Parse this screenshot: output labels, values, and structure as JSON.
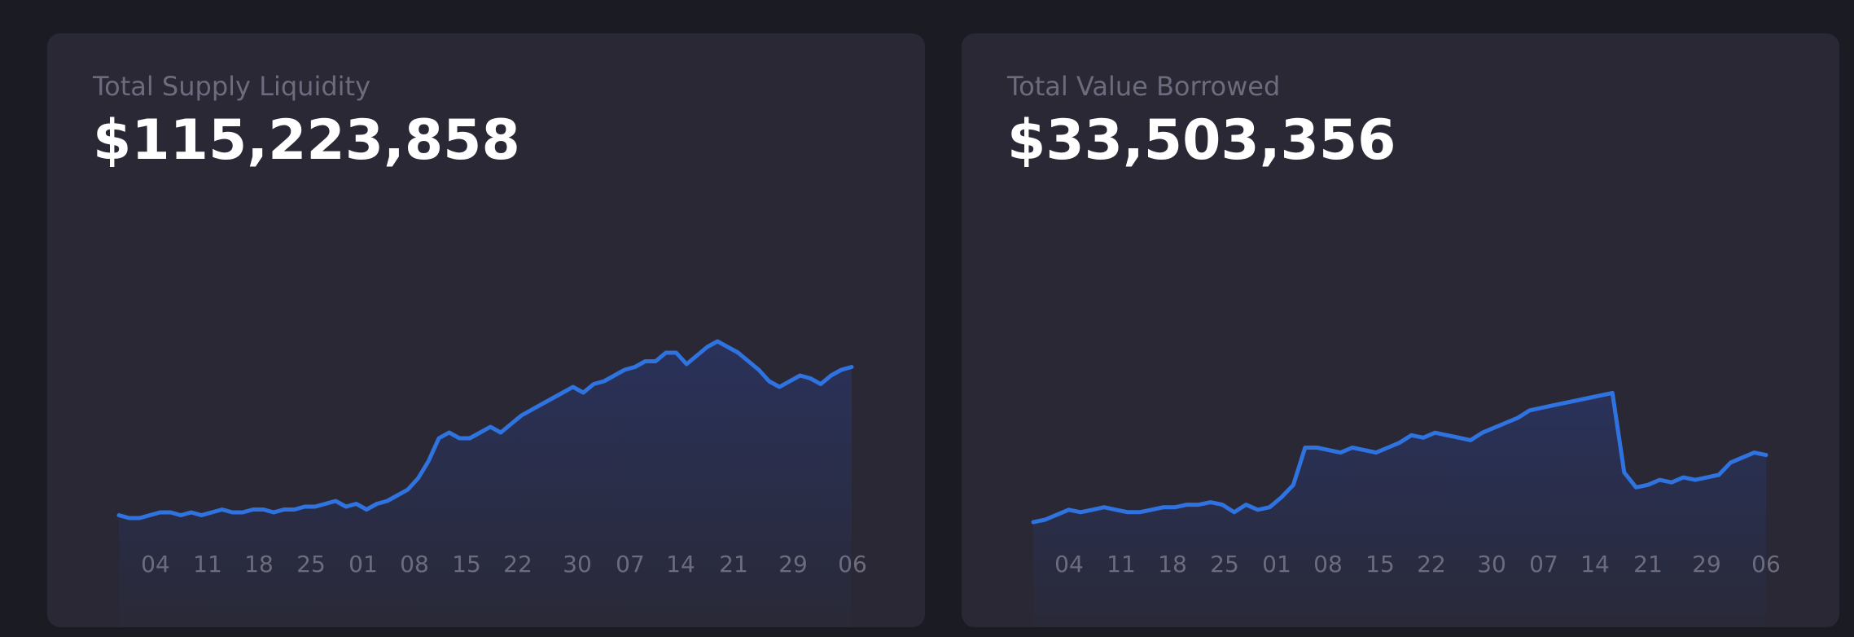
{
  "colors": {
    "background": "#1b1b24",
    "card": "#292834",
    "line": "#2f73e0",
    "label": "#6d6c7e",
    "value": "#ffffff"
  },
  "cards": [
    {
      "label": "Total Supply Liquidity",
      "value": "$115,223,858"
    },
    {
      "label": "Total Value Borrowed",
      "value": "$33,503,356"
    }
  ],
  "chart_data": [
    {
      "type": "area",
      "title": "Total Supply Liquidity",
      "x_tick_labels": [
        "04",
        "11",
        "18",
        "25",
        "01",
        "08",
        "15",
        "22",
        "30",
        "07",
        "14",
        "21",
        "29",
        "06"
      ],
      "y_relative": [
        0.01,
        0.0,
        0.0,
        0.01,
        0.02,
        0.02,
        0.01,
        0.02,
        0.01,
        0.02,
        0.03,
        0.02,
        0.02,
        0.03,
        0.03,
        0.02,
        0.03,
        0.03,
        0.04,
        0.04,
        0.05,
        0.06,
        0.04,
        0.05,
        0.03,
        0.05,
        0.06,
        0.08,
        0.1,
        0.14,
        0.2,
        0.28,
        0.3,
        0.28,
        0.28,
        0.3,
        0.32,
        0.3,
        0.33,
        0.36,
        0.38,
        0.4,
        0.42,
        0.44,
        0.46,
        0.44,
        0.47,
        0.48,
        0.5,
        0.52,
        0.53,
        0.55,
        0.55,
        0.58,
        0.58,
        0.54,
        0.57,
        0.6,
        0.62,
        0.6,
        0.58,
        0.55,
        0.52,
        0.48,
        0.46,
        0.48,
        0.5,
        0.49,
        0.47,
        0.5,
        0.52,
        0.53
      ],
      "grid": false,
      "legend": "none"
    },
    {
      "type": "area",
      "title": "Total Value Borrowed",
      "x_tick_labels": [
        "04",
        "11",
        "18",
        "25",
        "01",
        "08",
        "15",
        "22",
        "30",
        "07",
        "14",
        "21",
        "29",
        "06"
      ],
      "y_relative": [
        0.0,
        0.01,
        0.03,
        0.05,
        0.04,
        0.05,
        0.06,
        0.05,
        0.04,
        0.04,
        0.05,
        0.06,
        0.06,
        0.07,
        0.07,
        0.08,
        0.07,
        0.04,
        0.07,
        0.05,
        0.06,
        0.1,
        0.15,
        0.3,
        0.3,
        0.29,
        0.28,
        0.3,
        0.29,
        0.28,
        0.3,
        0.32,
        0.35,
        0.34,
        0.36,
        0.35,
        0.34,
        0.33,
        0.36,
        0.38,
        0.4,
        0.42,
        0.45,
        0.46,
        0.47,
        0.48,
        0.49,
        0.5,
        0.51,
        0.52,
        0.2,
        0.14,
        0.15,
        0.17,
        0.16,
        0.18,
        0.17,
        0.18,
        0.19,
        0.24,
        0.26,
        0.28,
        0.27
      ],
      "grid": false,
      "legend": "none"
    }
  ]
}
